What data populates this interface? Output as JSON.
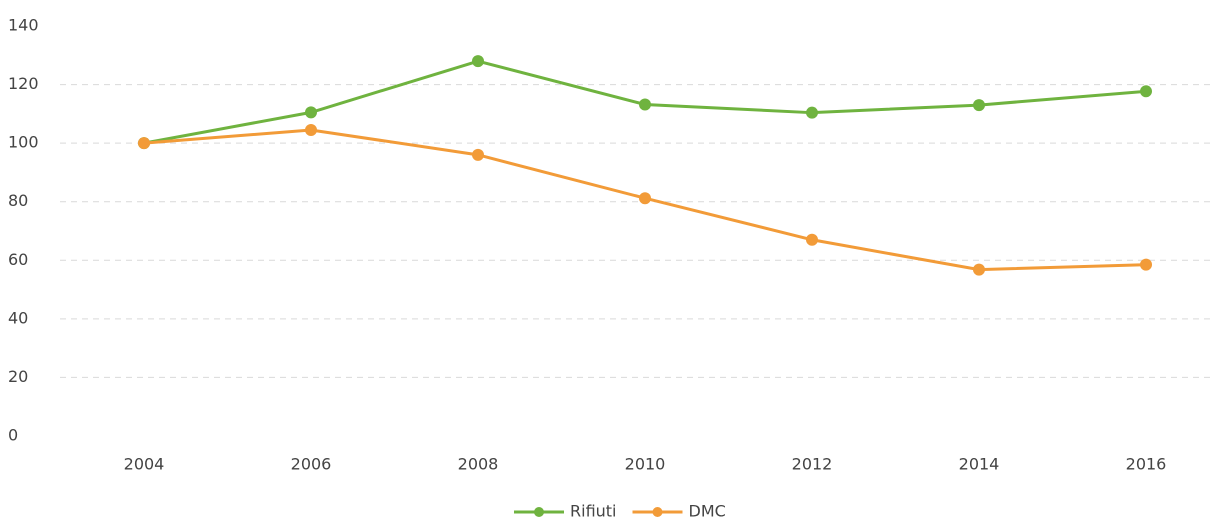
{
  "chart_data": {
    "type": "line",
    "categories": [
      "2004",
      "2006",
      "2008",
      "2010",
      "2012",
      "2014",
      "2016"
    ],
    "series": [
      {
        "name": "Rifiuti",
        "color": "#6fb33f",
        "values": [
          100,
          110.5,
          128,
          113.2,
          110.4,
          113,
          117.7
        ]
      },
      {
        "name": "DMC",
        "color": "#f29b38",
        "values": [
          100,
          104.5,
          96,
          81.2,
          67,
          56.8,
          58.5
        ]
      }
    ],
    "ylim": [
      0,
      140
    ],
    "yticks": [
      0,
      20,
      40,
      60,
      80,
      100,
      120,
      140
    ],
    "grid": true,
    "legend": "bottom"
  }
}
